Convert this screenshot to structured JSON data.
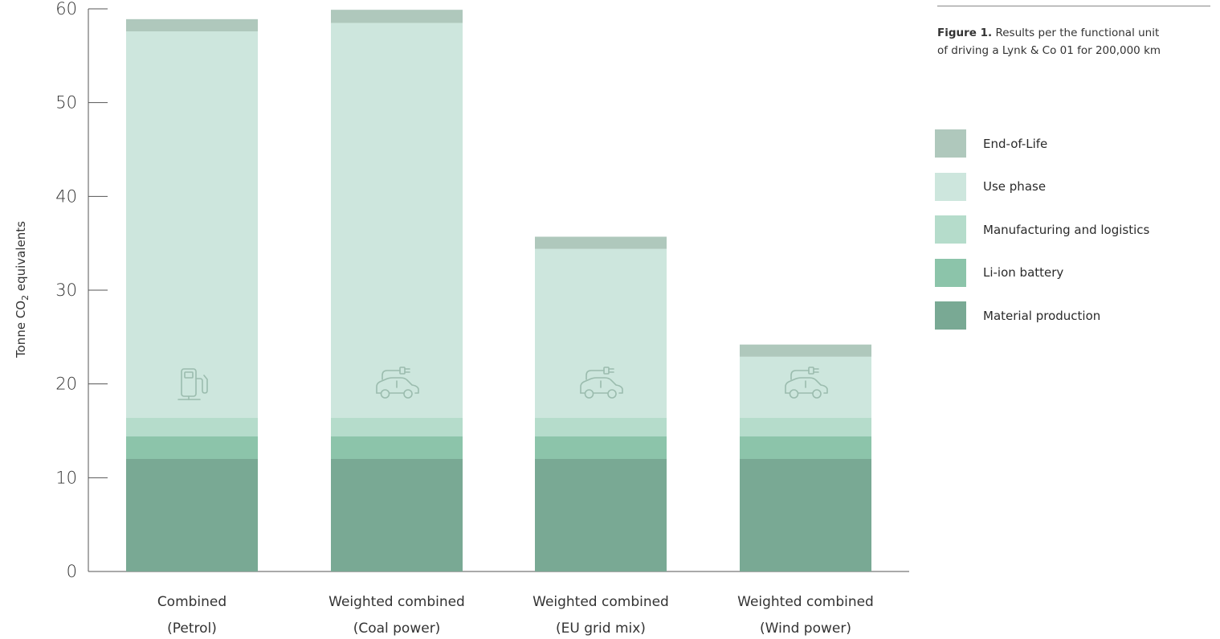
{
  "chart_data": {
    "type": "bar",
    "stacked": true,
    "categories": [
      [
        "Combined",
        "(Petrol)"
      ],
      [
        "Weighted combined",
        "(Coal power)"
      ],
      [
        "Weighted combined",
        "(EU grid mix)"
      ],
      [
        "Weighted combined",
        "(Wind power)"
      ]
    ],
    "category_icons": [
      "fuel-pump-icon",
      "electric-car-icon",
      "electric-car-icon",
      "electric-car-icon"
    ],
    "series": [
      {
        "name": "Material production",
        "color": "#79a994",
        "values": [
          12.0,
          12.0,
          12.0,
          12.0
        ]
      },
      {
        "name": "Li-ion battery",
        "color": "#8cc4aa",
        "values": [
          2.4,
          2.4,
          2.4,
          2.4
        ]
      },
      {
        "name": "Manufacturing and logistics",
        "color": "#b5dccb",
        "values": [
          2.0,
          2.0,
          2.0,
          2.0
        ]
      },
      {
        "name": "Use phase",
        "color": "#cde6dd",
        "values": [
          41.2,
          42.1,
          18.0,
          6.5
        ]
      },
      {
        "name": "End-of-Life",
        "color": "#afc8bc",
        "values": [
          1.3,
          1.4,
          1.3,
          1.3
        ]
      }
    ],
    "ylabel_prefix": "Tonne CO",
    "ylabel_sub": "2",
    "ylabel_suffix": " equivalents",
    "ylim": [
      0,
      60
    ],
    "yticks": [
      "0",
      "10",
      "20",
      "30",
      "40",
      "50",
      "60"
    ],
    "grid": false
  },
  "caption": {
    "bold": "Figure 1.",
    "text": " Results per the functional unit of driving a Lynk & Co 01 for 200,000 km"
  },
  "legend_order": [
    "End-of-Life",
    "Use phase",
    "Manufacturing and logistics",
    "Li-ion battery",
    "Material production"
  ],
  "legend_labels": {
    "end_of_life": "End-of-Life",
    "use_phase": "Use phase",
    "manufacturing": "Manufacturing and logistics",
    "battery": "Li-ion battery",
    "material": "Material production"
  }
}
